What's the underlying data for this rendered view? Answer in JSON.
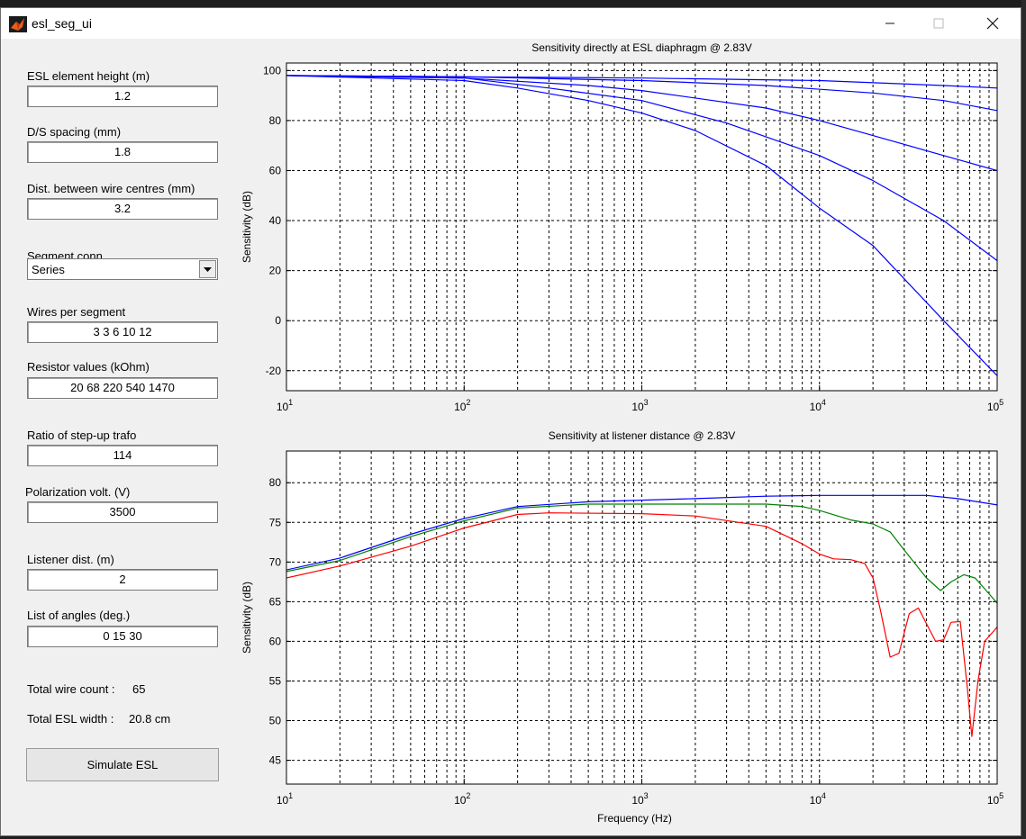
{
  "window": {
    "title": "esl_seg_ui",
    "icon": "matlab-logo-icon",
    "controls": [
      "minimize-icon",
      "maximize-icon",
      "close-icon"
    ]
  },
  "form": {
    "element_height": {
      "label": "ESL element height (m)",
      "value": "1.2"
    },
    "ds_spacing": {
      "label": "D/S spacing (mm)",
      "value": "1.8"
    },
    "wire_dist": {
      "label": "Dist. between wire centres (mm)",
      "value": "3.2"
    },
    "segment_conn": {
      "label": "Segment conn.",
      "value": "Series"
    },
    "wires_per_segment": {
      "label": "Wires per segment",
      "value": "3 3 6 10 12"
    },
    "resistors": {
      "label": "Resistor values (kOhm)",
      "value": "20 68 220 540 1470"
    },
    "trafo_ratio": {
      "label": "Ratio of step-up trafo",
      "value": "114"
    },
    "polarization": {
      "label": "Polarization volt. (V)",
      "value": "3500"
    },
    "listener_dist": {
      "label": "Listener dist. (m)",
      "value": "2"
    },
    "angles": {
      "label": "List of angles (deg.)",
      "value": "0 15 30"
    },
    "total_wire_count": {
      "label": "Total wire count :",
      "value": "65"
    },
    "total_width": {
      "label": "Total ESL width :",
      "value": "20.8 cm"
    },
    "simulate_label": "Simulate ESL"
  },
  "chart_data": [
    {
      "type": "line",
      "title": "Sensitivity directly at ESL diaphragm @ 2.83V",
      "xlabel": "",
      "ylabel": "Sensitivity (dB)",
      "xscale": "log",
      "xlim": [
        10,
        100000
      ],
      "ylim": [
        -28,
        103
      ],
      "yticks": [
        -20,
        0,
        20,
        40,
        60,
        80,
        100
      ],
      "xtick_labels": [
        {
          "base": "10",
          "exp": "1"
        },
        {
          "base": "10",
          "exp": "2"
        },
        {
          "base": "10",
          "exp": "3"
        },
        {
          "base": "10",
          "exp": "4"
        },
        {
          "base": "10",
          "exp": "5"
        }
      ],
      "grid": true,
      "series": [
        {
          "color": "#0000ff",
          "x": [
            10,
            100,
            1000,
            10000,
            50000,
            100000
          ],
          "y": [
            98,
            97.5,
            97,
            96,
            94,
            93
          ]
        },
        {
          "color": "#0000ff",
          "x": [
            10,
            100,
            1000,
            5000,
            20000,
            50000,
            100000
          ],
          "y": [
            98,
            97.5,
            96,
            94,
            91,
            88,
            84
          ]
        },
        {
          "color": "#0000ff",
          "x": [
            10,
            100,
            500,
            1000,
            5000,
            10000,
            20000,
            50000,
            100000
          ],
          "y": [
            98,
            97,
            94,
            92,
            85,
            80,
            74,
            66,
            60
          ]
        },
        {
          "color": "#0000ff",
          "x": [
            10,
            100,
            300,
            1000,
            3000,
            10000,
            20000,
            50000,
            100000
          ],
          "y": [
            98,
            97,
            93,
            88,
            79,
            66,
            56,
            40,
            24
          ]
        },
        {
          "color": "#0000ff",
          "x": [
            10,
            100,
            200,
            500,
            1000,
            2000,
            5000,
            10000,
            20000,
            50000,
            100000
          ],
          "y": [
            98,
            96,
            93,
            88,
            83,
            76,
            62,
            45,
            30,
            0,
            -22
          ]
        }
      ]
    },
    {
      "type": "line",
      "title": "Sensitivity at listener distance @ 2.83V",
      "xlabel": "Frequency (Hz)",
      "ylabel": "Sensitivity (dB)",
      "xscale": "log",
      "xlim": [
        10,
        100000
      ],
      "ylim": [
        42,
        84
      ],
      "yticks": [
        45,
        50,
        55,
        60,
        65,
        70,
        75,
        80
      ],
      "xtick_labels": [
        {
          "base": "10",
          "exp": "1"
        },
        {
          "base": "10",
          "exp": "2"
        },
        {
          "base": "10",
          "exp": "3"
        },
        {
          "base": "10",
          "exp": "4"
        },
        {
          "base": "10",
          "exp": "5"
        }
      ],
      "grid": true,
      "series": [
        {
          "color": "#0000ff",
          "x": [
            10,
            20,
            50,
            100,
            200,
            500,
            1000,
            2000,
            5000,
            10000,
            20000,
            40000,
            60000,
            100000
          ],
          "y": [
            69,
            70.5,
            73.5,
            75.5,
            77,
            77.6,
            77.8,
            78,
            78.3,
            78.4,
            78.4,
            78.4,
            78,
            77.2
          ]
        },
        {
          "color": "#008000",
          "x": [
            10,
            20,
            50,
            100,
            200,
            500,
            1000,
            2000,
            5000,
            8000,
            10000,
            15000,
            20000,
            25000,
            30000,
            40000,
            48000,
            55000,
            65000,
            75000,
            90000,
            100000
          ],
          "y": [
            68.8,
            70.2,
            73.2,
            75.2,
            76.8,
            77.3,
            77.3,
            77.3,
            77.3,
            77,
            76.5,
            75.3,
            74.8,
            73.8,
            71.5,
            68,
            66.4,
            67.5,
            68.4,
            68,
            66,
            64.8
          ]
        },
        {
          "color": "#ff0000",
          "x": [
            10,
            20,
            50,
            100,
            200,
            300,
            1000,
            2000,
            5000,
            8000,
            10000,
            12000,
            15000,
            18000,
            20000,
            22000,
            25000,
            28000,
            32000,
            36000,
            45000,
            50000,
            55000,
            62000,
            68000,
            72000,
            78000,
            85000,
            100000
          ],
          "y": [
            68,
            69.5,
            72,
            74.3,
            76,
            76.2,
            76.1,
            75.8,
            74.5,
            72.3,
            71,
            70.4,
            70.3,
            69.8,
            68,
            64,
            58,
            58.5,
            63.5,
            64.2,
            60,
            60.2,
            62.4,
            62.5,
            54,
            48,
            55,
            60,
            61.8
          ]
        }
      ]
    }
  ]
}
